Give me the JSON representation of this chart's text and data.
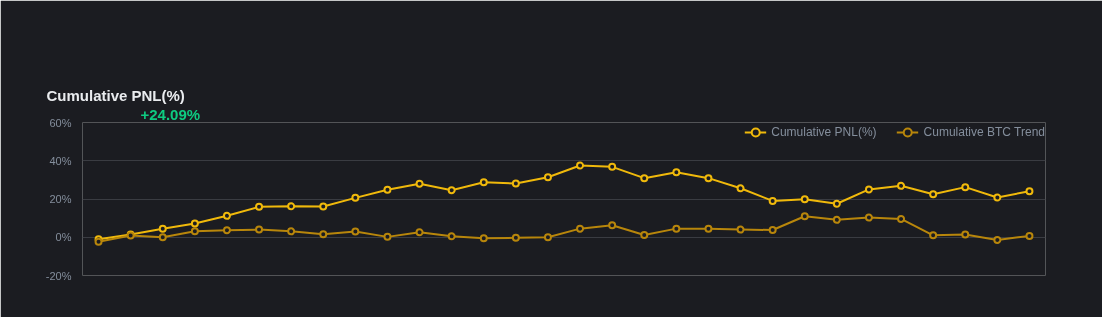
{
  "chart_data": {
    "type": "line",
    "title": "Cumulative PNL(%)",
    "annotations": [
      "+24.09%"
    ],
    "categories": [
      null,
      null,
      null,
      null,
      null,
      null,
      null,
      null,
      null,
      null,
      null,
      null,
      null,
      null,
      null,
      null,
      null,
      null,
      null,
      null,
      null,
      null,
      null,
      null,
      null,
      null,
      null,
      null,
      null,
      null
    ],
    "series": [
      {
        "name": "Cumulative PNL(%)",
        "color": "#f0b90b",
        "values": [
          -1,
          1.4,
          4.4,
          7.2,
          11.2,
          15.9,
          16.2,
          16.1,
          20.6,
          24.8,
          28.0,
          24.6,
          28.8,
          28.1,
          31.4,
          37.5,
          36.8,
          30.9,
          34.0,
          30.9,
          25.6,
          19.0,
          19.9,
          17.5,
          25.0,
          26.9,
          22.5,
          26.2,
          20.8,
          24.1
        ]
      },
      {
        "name": "Cumulative BTC Trend",
        "color": "#b8860b",
        "values": [
          -2.3,
          0.9,
          0,
          3.1,
          3.7,
          4.0,
          3.1,
          1.6,
          3.0,
          0.2,
          2.6,
          0.5,
          -0.5,
          -0.3,
          0,
          4.5,
          6.3,
          1.2,
          4.5,
          4.4,
          4.0,
          3.8,
          11.0,
          9.1,
          10.3,
          9.6,
          1.0,
          1.4,
          -1.4,
          0.7
        ]
      }
    ],
    "ylim": [
      -20,
      60
    ],
    "yticks": [
      {
        "value": -20,
        "label": "-20%"
      },
      {
        "value": 0,
        "label": "0%"
      },
      {
        "value": 20,
        "label": "20%"
      },
      {
        "value": 40,
        "label": "40%"
      },
      {
        "value": 60,
        "label": "60%"
      }
    ],
    "tick_labels": "y",
    "grid": "y",
    "legend": "top right",
    "marker": "circle",
    "line_style": "solid"
  }
}
